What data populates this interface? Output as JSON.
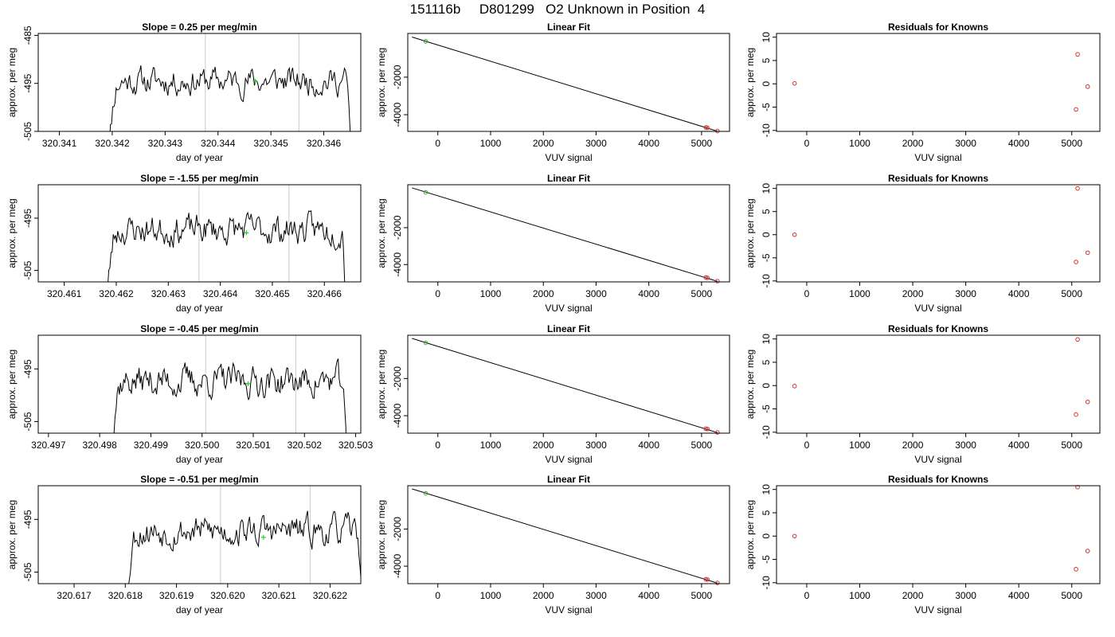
{
  "figure": {
    "title": "151116b     D801299   O2 Unknown in Position  4"
  },
  "chart_data": [
    {
      "type": "line",
      "title": "Slope =  0.25  per meg/min",
      "xlabel": "day of year",
      "ylabel": "approx. per meg",
      "xlim": [
        320.3406,
        320.3467
      ],
      "ylim": [
        -505,
        -484.6
      ],
      "xticks": [
        "320.341",
        "320.342",
        "320.343",
        "320.344",
        "320.345",
        "320.346"
      ],
      "yticks": [
        "-485",
        "-495",
        "-505"
      ],
      "vlines": [
        320.34376,
        320.34553
      ],
      "start": 320.34186,
      "end": 320.34654,
      "seed": 11,
      "series": [
        {
          "trace_level": -494.5,
          "amplitude": 2.2
        }
      ],
      "marker": {
        "x": 320.3447,
        "y": -494.5,
        "color": "#22cc22"
      }
    },
    {
      "type": "scatter",
      "title": "Linear Fit",
      "xlabel": "VUV signal",
      "ylabel": "approx. per meg",
      "xlim": [
        -570,
        5530
      ],
      "ylim": [
        -4890,
        330
      ],
      "xticks": [
        "0",
        "1000",
        "2000",
        "3000",
        "4000",
        "5000"
      ],
      "yticks": [
        "-2000",
        "-4000"
      ],
      "fit_line": [
        [
          -490,
          140
        ],
        [
          5300,
          -4880
        ]
      ],
      "points": [
        {
          "x": -230,
          "y": -90,
          "color": "#2aaa2a"
        },
        {
          "x": 5080,
          "y": -4680,
          "color": "#cc3333"
        },
        {
          "x": 5110,
          "y": -4700,
          "color": "#cc3333"
        },
        {
          "x": 5300,
          "y": -4870,
          "color": "#cc3333"
        }
      ]
    },
    {
      "type": "scatter",
      "title": "Residuals for Knowns",
      "xlabel": "VUV signal",
      "ylabel": "approx. per meg",
      "xlim": [
        -570,
        5530
      ],
      "ylim": [
        -10.2,
        10.8
      ],
      "xticks": [
        "0",
        "1000",
        "2000",
        "3000",
        "4000",
        "5000"
      ],
      "yticks": [
        "10",
        "5",
        "0",
        "-5",
        "-10"
      ],
      "points": [
        {
          "x": -230,
          "y": 0.1
        },
        {
          "x": 5080,
          "y": -5.5
        },
        {
          "x": 5110,
          "y": 6.3
        },
        {
          "x": 5300,
          "y": -0.6
        }
      ]
    },
    {
      "type": "line",
      "title": "Slope =  -1.55  per meg/min",
      "xlabel": "day of year",
      "ylabel": "approx. per meg",
      "xlim": [
        320.4605,
        320.4667
      ],
      "ylim": [
        -507.2,
        -488.6
      ],
      "xticks": [
        "320.461",
        "320.462",
        "320.463",
        "320.464",
        "320.465",
        "320.466"
      ],
      "yticks": [
        "-495",
        "-505"
      ],
      "vlines": [
        320.46359,
        320.46532
      ],
      "start": 320.46175,
      "end": 320.46645,
      "seed": 23,
      "series": [
        {
          "trace_level": -497.2,
          "amplitude": 2.2
        }
      ],
      "marker": {
        "x": 320.4645,
        "y": -497.8,
        "color": "#22cc22"
      }
    },
    {
      "type": "scatter",
      "title": "Linear Fit",
      "xlabel": "VUV signal",
      "ylabel": "approx. per meg",
      "xlim": [
        -570,
        5530
      ],
      "ylim": [
        -4940,
        330
      ],
      "xticks": [
        "0",
        "1000",
        "2000",
        "3000",
        "4000",
        "5000"
      ],
      "yticks": [
        "-2000",
        "-4000"
      ],
      "fit_line": [
        [
          -490,
          160
        ],
        [
          5300,
          -4910
        ]
      ],
      "points": [
        {
          "x": -230,
          "y": -80,
          "color": "#2aaa2a"
        },
        {
          "x": 5080,
          "y": -4700,
          "color": "#cc3333"
        },
        {
          "x": 5110,
          "y": -4720,
          "color": "#cc3333"
        },
        {
          "x": 5300,
          "y": -4900,
          "color": "#cc3333"
        }
      ]
    },
    {
      "type": "scatter",
      "title": "Residuals for Knowns",
      "xlabel": "VUV signal",
      "ylabel": "approx. per meg",
      "xlim": [
        -570,
        5530
      ],
      "ylim": [
        -10.2,
        10.8
      ],
      "xticks": [
        "0",
        "1000",
        "2000",
        "3000",
        "4000",
        "5000"
      ],
      "yticks": [
        "10",
        "5",
        "0",
        "-5",
        "-10"
      ],
      "points": [
        {
          "x": -230,
          "y": 0.0
        },
        {
          "x": 5080,
          "y": -5.9
        },
        {
          "x": 5110,
          "y": 10.0
        },
        {
          "x": 5300,
          "y": -3.9
        }
      ]
    },
    {
      "type": "line",
      "title": "Slope =  -0.45  per meg/min",
      "xlabel": "day of year",
      "ylabel": "approx. per meg",
      "xlim": [
        320.4968,
        320.5031
      ],
      "ylim": [
        -507.2,
        -488.6
      ],
      "xticks": [
        "320.497",
        "320.498",
        "320.499",
        "320.500",
        "320.501",
        "320.502",
        "320.503"
      ],
      "yticks": [
        "-495",
        "-505"
      ],
      "vlines": [
        320.50007,
        320.50183
      ],
      "start": 320.49815,
      "end": 320.50285,
      "seed": 37,
      "series": [
        {
          "trace_level": -497.3,
          "amplitude": 2.3
        }
      ],
      "marker": {
        "x": 320.5009,
        "y": -497.8,
        "color": "#22cc22"
      }
    },
    {
      "type": "scatter",
      "title": "Linear Fit",
      "xlabel": "VUV signal",
      "ylabel": "approx. per meg",
      "xlim": [
        -570,
        5530
      ],
      "ylim": [
        -4940,
        330
      ],
      "xticks": [
        "0",
        "1000",
        "2000",
        "3000",
        "4000",
        "5000"
      ],
      "yticks": [
        "-2000",
        "-4000"
      ],
      "fit_line": [
        [
          -490,
          160
        ],
        [
          5300,
          -4910
        ]
      ],
      "points": [
        {
          "x": -230,
          "y": -80,
          "color": "#2aaa2a"
        },
        {
          "x": 5080,
          "y": -4700,
          "color": "#cc3333"
        },
        {
          "x": 5110,
          "y": -4720,
          "color": "#cc3333"
        },
        {
          "x": 5300,
          "y": -4900,
          "color": "#cc3333"
        }
      ]
    },
    {
      "type": "scatter",
      "title": "Residuals for Knowns",
      "xlabel": "VUV signal",
      "ylabel": "approx. per meg",
      "xlim": [
        -570,
        5530
      ],
      "ylim": [
        -10.2,
        10.8
      ],
      "xticks": [
        "0",
        "1000",
        "2000",
        "3000",
        "4000",
        "5000"
      ],
      "yticks": [
        "10",
        "5",
        "0",
        "-5",
        "-10"
      ],
      "points": [
        {
          "x": -230,
          "y": -0.1
        },
        {
          "x": 5080,
          "y": -6.2
        },
        {
          "x": 5110,
          "y": 9.9
        },
        {
          "x": 5300,
          "y": -3.5
        }
      ]
    },
    {
      "type": "line",
      "title": "Slope =  -0.51  per meg/min",
      "xlabel": "day of year",
      "ylabel": "approx. per meg",
      "xlim": [
        320.6163,
        320.6226
      ],
      "ylim": [
        -507.2,
        -488.6
      ],
      "xticks": [
        "320.617",
        "320.618",
        "320.619",
        "320.620",
        "320.621",
        "320.622"
      ],
      "yticks": [
        "-495",
        "-505"
      ],
      "vlines": [
        320.61986,
        320.62161
      ],
      "start": 320.61795,
      "end": 320.62265,
      "seed": 53,
      "series": [
        {
          "trace_level": -497.2,
          "amplitude": 2.2
        }
      ],
      "marker": {
        "x": 320.6207,
        "y": -498.4,
        "color": "#22cc22"
      }
    },
    {
      "type": "scatter",
      "title": "Linear Fit",
      "xlabel": "VUV signal",
      "ylabel": "approx. per meg",
      "xlim": [
        -570,
        5530
      ],
      "ylim": [
        -4940,
        330
      ],
      "xticks": [
        "0",
        "1000",
        "2000",
        "3000",
        "4000",
        "5000"
      ],
      "yticks": [
        "-2000",
        "-4000"
      ],
      "fit_line": [
        [
          -490,
          160
        ],
        [
          5300,
          -4910
        ]
      ],
      "points": [
        {
          "x": -230,
          "y": -80,
          "color": "#2aaa2a"
        },
        {
          "x": 5080,
          "y": -4700,
          "color": "#cc3333"
        },
        {
          "x": 5110,
          "y": -4720,
          "color": "#cc3333"
        },
        {
          "x": 5300,
          "y": -4900,
          "color": "#cc3333"
        }
      ]
    },
    {
      "type": "scatter",
      "title": "Residuals for Knowns",
      "xlabel": "VUV signal",
      "ylabel": "approx. per meg",
      "xlim": [
        -570,
        5530
      ],
      "ylim": [
        -10.2,
        10.8
      ],
      "xticks": [
        "0",
        "1000",
        "2000",
        "3000",
        "4000",
        "5000"
      ],
      "yticks": [
        "10",
        "5",
        "0",
        "-5",
        "-10"
      ],
      "points": [
        {
          "x": -230,
          "y": 0.0
        },
        {
          "x": 5080,
          "y": -7.1
        },
        {
          "x": 5110,
          "y": 10.5
        },
        {
          "x": 5300,
          "y": -3.2
        }
      ]
    }
  ],
  "colors": {
    "trace": "#000000",
    "vline": "#c8c8c8",
    "fit_line": "#000000",
    "residual_point": "#cc3333",
    "marker": "#22cc22"
  }
}
